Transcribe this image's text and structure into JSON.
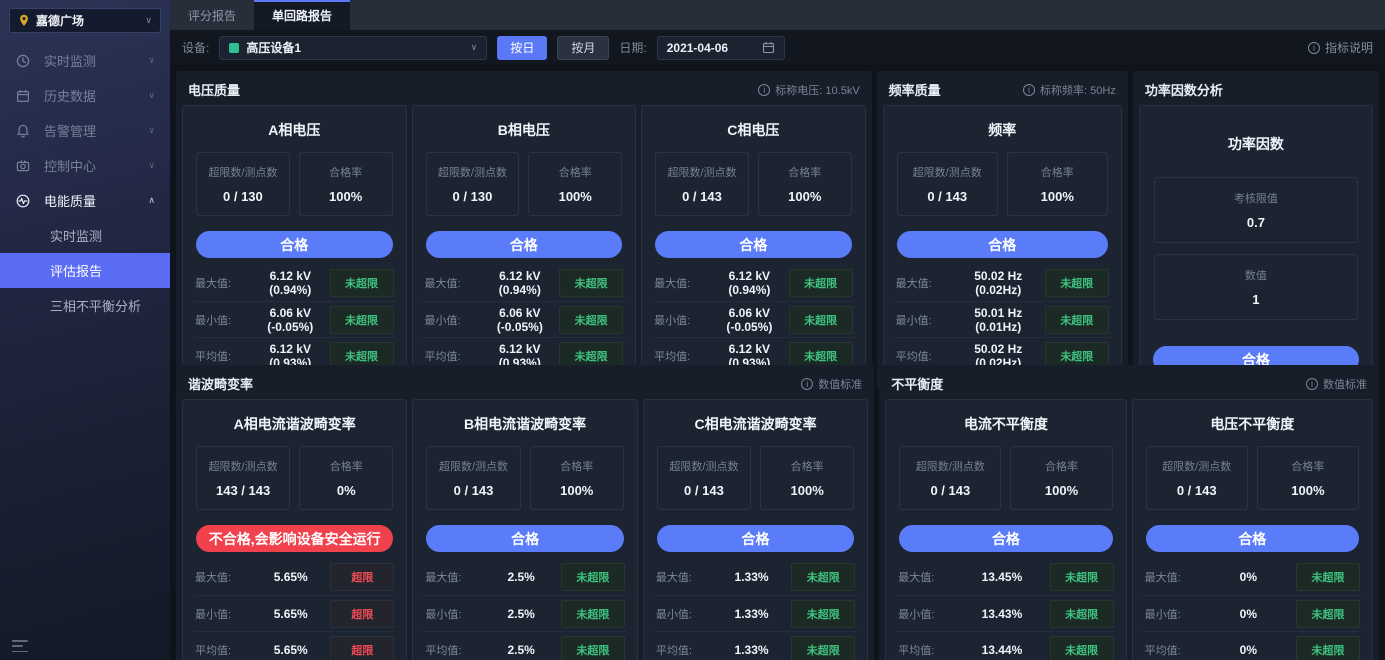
{
  "sidebar": {
    "site": "嘉德广场",
    "menu": [
      {
        "label": "实时监测",
        "icon": "monitor-icon",
        "expanded": false,
        "active": false
      },
      {
        "label": "历史数据",
        "icon": "calendar-icon",
        "expanded": false,
        "active": false
      },
      {
        "label": "告警管理",
        "icon": "bell-icon",
        "expanded": false,
        "active": false
      },
      {
        "label": "控制中心",
        "icon": "control-icon",
        "expanded": false,
        "active": false
      },
      {
        "label": "电能质量",
        "icon": "power-quality-icon",
        "expanded": true,
        "active": true
      }
    ],
    "submenu": [
      {
        "label": "实时监测",
        "selected": false
      },
      {
        "label": "评估报告",
        "selected": true
      },
      {
        "label": "三相不平衡分析",
        "selected": false
      }
    ]
  },
  "tabs": [
    {
      "label": "评分报告",
      "active": false
    },
    {
      "label": "单回路报告",
      "active": true
    }
  ],
  "toolbar": {
    "device_label": "设备:",
    "device_value": "高压设备1",
    "by_day": "按日",
    "by_month": "按月",
    "date_label": "日期:",
    "date_value": "2021-04-06",
    "help": "指标说明"
  },
  "labels": {
    "stat1": "超限数/测点数",
    "stat2": "合格率",
    "max": "最大值:",
    "min": "最小值:",
    "avg": "平均值:"
  },
  "badges": {
    "ok": "未超限",
    "over": "超限"
  },
  "status": {
    "pass": "合格",
    "fail": "不合格,会影响设备安全运行"
  },
  "colors": {
    "accent_blue": "#5b79f7",
    "pass_blue": "#5b7cf9",
    "fail_red": "#f1414d",
    "ok_green": "#3ec17e",
    "over_red": "#ef4b55",
    "device_green": "#2fbe8f",
    "pin_gold": "#d9a527"
  },
  "panels": [
    {
      "title": "电压质量",
      "note": "标称电压: 10.5kV",
      "row": 1,
      "type": "standard",
      "cards": [
        {
          "title": "A相电压",
          "ratio": "0 / 130",
          "rate": "100%",
          "status": "pass",
          "rows": [
            {
              "value": "6.12 kV (0.94%)",
              "badge": "ok"
            },
            {
              "value": "6.06 kV (-0.05%)",
              "badge": "ok"
            },
            {
              "value": "6.12 kV (0.93%)",
              "badge": "ok"
            }
          ]
        },
        {
          "title": "B相电压",
          "ratio": "0 / 130",
          "rate": "100%",
          "status": "pass",
          "rows": [
            {
              "value": "6.12 kV (0.94%)",
              "badge": "ok"
            },
            {
              "value": "6.06 kV (-0.05%)",
              "badge": "ok"
            },
            {
              "value": "6.12 kV (0.93%)",
              "badge": "ok"
            }
          ]
        },
        {
          "title": "C相电压",
          "ratio": "0 / 143",
          "rate": "100%",
          "status": "pass",
          "rows": [
            {
              "value": "6.12 kV (0.94%)",
              "badge": "ok"
            },
            {
              "value": "6.06 kV (-0.05%)",
              "badge": "ok"
            },
            {
              "value": "6.12 kV (0.93%)",
              "badge": "ok"
            }
          ]
        }
      ]
    },
    {
      "title": "频率质量",
      "note": "标称频率: 50Hz",
      "row": 1,
      "type": "standard",
      "cards": [
        {
          "title": "频率",
          "ratio": "0 / 143",
          "rate": "100%",
          "status": "pass",
          "rows": [
            {
              "value": "50.02 Hz (0.02Hz)",
              "badge": "ok"
            },
            {
              "value": "50.01 Hz (0.01Hz)",
              "badge": "ok"
            },
            {
              "value": "50.02 Hz (0.02Hz)",
              "badge": "ok"
            }
          ]
        }
      ]
    },
    {
      "title": "功率因数分析",
      "note": "",
      "row": 1,
      "type": "factor",
      "cards": [
        {
          "title": "功率因数",
          "status": "pass",
          "boxes": [
            {
              "label": "考核限值",
              "value": "0.7"
            },
            {
              "label": "数值",
              "value": "1"
            }
          ]
        }
      ]
    },
    {
      "title": "谐波畸变率",
      "note": "数值标准",
      "row": 2,
      "type": "standard",
      "cards": [
        {
          "title": "A相电流谐波畸变率",
          "ratio": "143 / 143",
          "rate": "0%",
          "status": "fail",
          "rows": [
            {
              "value": "5.65%",
              "badge": "over"
            },
            {
              "value": "5.65%",
              "badge": "over"
            },
            {
              "value": "5.65%",
              "badge": "over"
            }
          ]
        },
        {
          "title": "B相电流谐波畸变率",
          "ratio": "0 / 143",
          "rate": "100%",
          "status": "pass",
          "rows": [
            {
              "value": "2.5%",
              "badge": "ok"
            },
            {
              "value": "2.5%",
              "badge": "ok"
            },
            {
              "value": "2.5%",
              "badge": "ok"
            }
          ]
        },
        {
          "title": "C相电流谐波畸变率",
          "ratio": "0 / 143",
          "rate": "100%",
          "status": "pass",
          "rows": [
            {
              "value": "1.33%",
              "badge": "ok"
            },
            {
              "value": "1.33%",
              "badge": "ok"
            },
            {
              "value": "1.33%",
              "badge": "ok"
            }
          ]
        }
      ]
    },
    {
      "title": "不平衡度",
      "note": "数值标准",
      "row": 2,
      "type": "standard",
      "cards": [
        {
          "title": "电流不平衡度",
          "ratio": "0 / 143",
          "rate": "100%",
          "status": "pass",
          "rows": [
            {
              "value": "13.45%",
              "badge": "ok"
            },
            {
              "value": "13.43%",
              "badge": "ok"
            },
            {
              "value": "13.44%",
              "badge": "ok"
            }
          ]
        },
        {
          "title": "电压不平衡度",
          "ratio": "0 / 143",
          "rate": "100%",
          "status": "pass",
          "rows": [
            {
              "value": "0%",
              "badge": "ok"
            },
            {
              "value": "0%",
              "badge": "ok"
            },
            {
              "value": "0%",
              "badge": "ok"
            }
          ]
        }
      ]
    }
  ]
}
